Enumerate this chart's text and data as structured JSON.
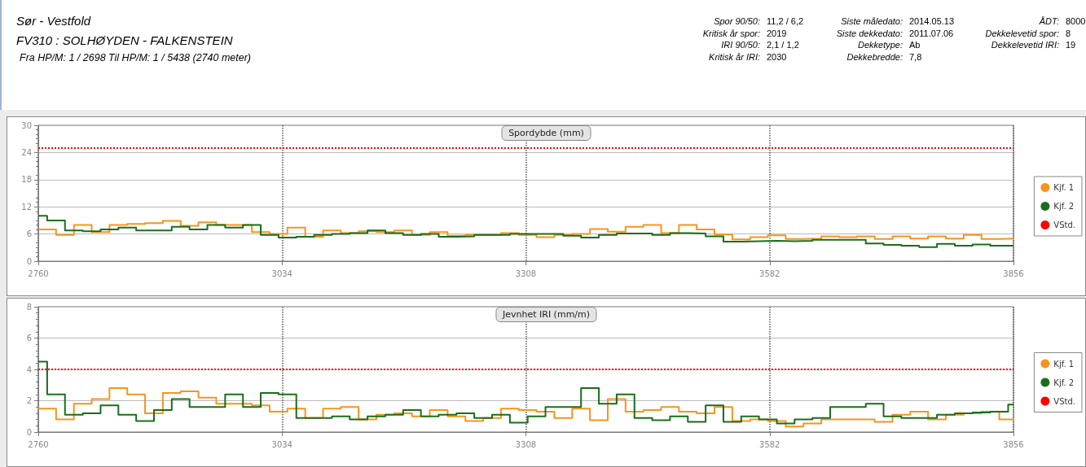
{
  "chart_data": [
    {
      "type": "other",
      "title": "Sør - Vestfold",
      "subtitle": "FV310 : SOLHØYDEN - FALKENSTEIN",
      "annotations": [
        "Fra HP/M: 1 / 2698 Til HP/M: 1 / 5438 (2740 meter)",
        "Spor 90/50:",
        "11,2 / 6,2",
        "Kritisk år spor:",
        "2019",
        "IRI 90/50:",
        "2,1 / 1,2",
        "Kritisk år IRI:",
        "2030",
        "Siste måledato:",
        "2014.05.13",
        "Siste dekkedato:",
        "2011.07.06",
        "Dekketype:",
        "Ab",
        "Dekkebredde:",
        "7,8",
        "ÅDT:",
        "8000",
        "Dekkelevetid spor:",
        "8",
        "Dekkelevetid IRI:",
        "19"
      ]
    },
    {
      "type": "step",
      "title": "Spordybde (mm)",
      "xlim": [
        2760,
        3856
      ],
      "xticks": [
        2760,
        3034,
        3308,
        3582,
        3856
      ],
      "ylim": [
        0,
        30
      ],
      "yticks": [
        0,
        6,
        12,
        18,
        24,
        30
      ],
      "grid": true,
      "legend": "right",
      "marker": "none",
      "series": [
        {
          "name": "Kjf. 1",
          "color": "#f7941d",
          "x": [
            2760,
            2780,
            2800,
            2820,
            2840,
            2860,
            2880,
            2900,
            2920,
            2940,
            2960,
            2980,
            3000,
            3020,
            3040,
            3060,
            3080,
            3100,
            3120,
            3140,
            3160,
            3180,
            3200,
            3220,
            3240,
            3260,
            3280,
            3300,
            3320,
            3340,
            3360,
            3380,
            3400,
            3420,
            3440,
            3460,
            3480,
            3500,
            3520,
            3540,
            3560,
            3580,
            3600,
            3620,
            3640,
            3660,
            3680,
            3700,
            3720,
            3740,
            3760,
            3780,
            3800,
            3820,
            3840,
            3856
          ],
          "values": [
            7.0,
            5.8,
            8.0,
            6.4,
            8.0,
            8.2,
            8.4,
            8.9,
            7.8,
            8.6,
            8.0,
            8.0,
            6.4,
            6.0,
            7.4,
            5.4,
            6.8,
            6.2,
            6.6,
            6.4,
            6.8,
            5.8,
            6.4,
            5.6,
            5.8,
            5.8,
            6.2,
            5.8,
            5.3,
            5.8,
            6.0,
            7.1,
            6.5,
            7.6,
            8.0,
            6.2,
            8.0,
            7.0,
            5.9,
            4.8,
            5.3,
            5.7,
            4.9,
            5.0,
            5.5,
            5.3,
            5.5,
            4.9,
            5.5,
            5.0,
            5.5,
            5.0,
            5.8,
            4.9,
            5.0,
            5.0
          ]
        },
        {
          "name": "Kjf. 2",
          "color": "#1a6e1a",
          "x": [
            2760,
            2770,
            2790,
            2810,
            2830,
            2850,
            2870,
            2890,
            2910,
            2930,
            2950,
            2970,
            2990,
            3010,
            3030,
            3050,
            3070,
            3090,
            3110,
            3130,
            3150,
            3170,
            3190,
            3210,
            3230,
            3250,
            3270,
            3290,
            3310,
            3330,
            3350,
            3370,
            3390,
            3410,
            3430,
            3450,
            3470,
            3490,
            3510,
            3530,
            3550,
            3570,
            3590,
            3610,
            3630,
            3650,
            3670,
            3690,
            3710,
            3730,
            3750,
            3770,
            3790,
            3810,
            3830,
            3850,
            3856
          ],
          "values": [
            10.0,
            9.0,
            6.8,
            6.6,
            7.0,
            7.4,
            6.8,
            6.8,
            7.6,
            7.0,
            8.0,
            7.4,
            8.0,
            5.8,
            5.2,
            5.4,
            5.8,
            6.0,
            6.2,
            6.8,
            6.2,
            5.8,
            6.0,
            5.4,
            5.5,
            5.8,
            5.8,
            6.0,
            6.0,
            6.0,
            5.6,
            5.2,
            5.8,
            6.1,
            6.1,
            5.8,
            6.2,
            6.1,
            5.5,
            4.3,
            4.4,
            4.5,
            4.4,
            4.5,
            4.7,
            4.7,
            4.7,
            3.9,
            3.6,
            3.4,
            3.1,
            3.8,
            3.4,
            3.7,
            3.4,
            3.4,
            3.4
          ]
        }
      ],
      "ref_lines": [
        {
          "axis": "y",
          "value": 25,
          "label": "VStd.",
          "color": "#ff0000",
          "line_style": "dotted"
        }
      ]
    },
    {
      "type": "step",
      "title": "Jevnhet IRI (mm/m)",
      "xlim": [
        2760,
        3856
      ],
      "xticks": [
        2760,
        3034,
        3308,
        3582,
        3856
      ],
      "ylim": [
        0,
        8
      ],
      "yticks": [
        0,
        2,
        4,
        6,
        8
      ],
      "grid": true,
      "legend": "right",
      "marker": "none",
      "series": [
        {
          "name": "Kjf. 1",
          "color": "#f7941d",
          "x": [
            2760,
            2780,
            2800,
            2820,
            2840,
            2860,
            2880,
            2900,
            2920,
            2940,
            2960,
            2980,
            3000,
            3020,
            3040,
            3060,
            3080,
            3100,
            3120,
            3140,
            3160,
            3180,
            3200,
            3220,
            3240,
            3260,
            3280,
            3300,
            3320,
            3340,
            3360,
            3380,
            3400,
            3420,
            3440,
            3460,
            3480,
            3500,
            3520,
            3540,
            3560,
            3580,
            3600,
            3620,
            3640,
            3660,
            3680,
            3700,
            3720,
            3740,
            3760,
            3780,
            3800,
            3820,
            3840,
            3856
          ],
          "values": [
            1.5,
            0.8,
            1.8,
            2.1,
            2.8,
            2.4,
            1.2,
            2.5,
            2.6,
            2.2,
            1.8,
            1.8,
            1.7,
            1.3,
            1.5,
            0.9,
            1.5,
            1.6,
            0.8,
            1.1,
            1.2,
            1.0,
            1.4,
            1.0,
            0.7,
            0.9,
            1.5,
            1.4,
            1.3,
            0.9,
            1.5,
            0.75,
            2.1,
            1.3,
            1.4,
            1.6,
            1.3,
            1.2,
            1.6,
            0.7,
            0.8,
            0.7,
            0.35,
            0.55,
            0.8,
            0.8,
            0.8,
            0.65,
            1.1,
            1.3,
            0.8,
            1.1,
            1.2,
            1.3,
            0.8,
            0.8
          ]
        },
        {
          "name": "Kjf. 2",
          "color": "#1a6e1a",
          "x": [
            2760,
            2770,
            2790,
            2810,
            2830,
            2850,
            2870,
            2890,
            2910,
            2930,
            2950,
            2970,
            2990,
            3010,
            3030,
            3050,
            3070,
            3090,
            3110,
            3130,
            3150,
            3170,
            3190,
            3210,
            3230,
            3250,
            3270,
            3290,
            3310,
            3330,
            3350,
            3370,
            3390,
            3410,
            3430,
            3450,
            3470,
            3490,
            3510,
            3530,
            3550,
            3570,
            3590,
            3610,
            3630,
            3650,
            3670,
            3690,
            3710,
            3730,
            3750,
            3770,
            3790,
            3810,
            3830,
            3850,
            3856
          ],
          "values": [
            4.5,
            2.4,
            1.1,
            1.2,
            1.7,
            1.1,
            0.7,
            1.4,
            2.1,
            1.6,
            1.6,
            2.4,
            1.6,
            2.5,
            2.4,
            0.9,
            0.9,
            1.0,
            0.8,
            1.0,
            1.1,
            1.4,
            1.0,
            1.1,
            1.2,
            0.9,
            1.1,
            0.6,
            1.0,
            1.6,
            1.6,
            2.8,
            1.8,
            2.4,
            0.9,
            0.75,
            1.0,
            0.65,
            1.7,
            0.65,
            1.0,
            0.8,
            0.55,
            0.8,
            0.9,
            1.6,
            1.6,
            1.8,
            1.0,
            0.9,
            0.9,
            1.1,
            1.2,
            1.25,
            1.3,
            1.75,
            1.75
          ]
        }
      ],
      "ref_lines": [
        {
          "axis": "y",
          "value": 4,
          "label": "VStd.",
          "color": "#ff0000",
          "line_style": "dotted"
        }
      ]
    }
  ]
}
